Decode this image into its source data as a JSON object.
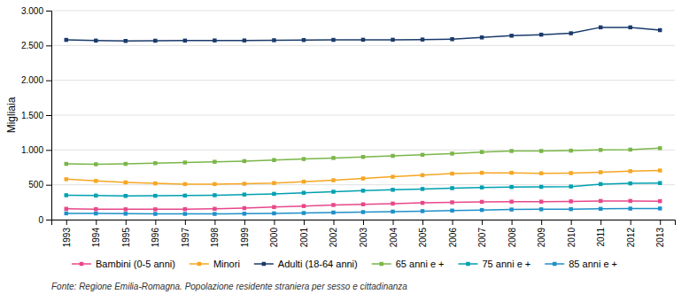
{
  "chart_data": {
    "type": "line",
    "x": [
      1993,
      1994,
      1995,
      1996,
      1997,
      1998,
      1999,
      2000,
      2001,
      2002,
      2003,
      2004,
      2005,
      2006,
      2007,
      2008,
      2009,
      2010,
      2011,
      2012,
      2013
    ],
    "series": [
      {
        "name": "Bambini (0-5 anni)",
        "color": "#e8478a",
        "marker": "square",
        "values": [
          155,
          150,
          148,
          148,
          150,
          155,
          165,
          180,
          195,
          210,
          220,
          230,
          240,
          248,
          255,
          258,
          258,
          262,
          268,
          268,
          265
        ]
      },
      {
        "name": "Minori",
        "color": "#f5a623",
        "marker": "square",
        "values": [
          580,
          555,
          535,
          520,
          510,
          510,
          515,
          525,
          545,
          565,
          590,
          615,
          638,
          660,
          672,
          672,
          665,
          668,
          680,
          695,
          705
        ]
      },
      {
        "name": "Adulti (18-64 anni)",
        "color": "#1a3a6b",
        "marker": "square",
        "values": [
          2580,
          2570,
          2565,
          2568,
          2570,
          2572,
          2572,
          2575,
          2578,
          2580,
          2582,
          2582,
          2585,
          2590,
          2615,
          2640,
          2655,
          2675,
          2760,
          2760,
          2720
        ]
      },
      {
        "name": "65 anni e +",
        "color": "#7ab648",
        "marker": "square",
        "values": [
          800,
          795,
          800,
          810,
          820,
          830,
          840,
          855,
          870,
          885,
          900,
          915,
          930,
          948,
          970,
          985,
          985,
          990,
          1000,
          1005,
          1025
        ]
      },
      {
        "name": "75 anni e +",
        "color": "#00a0b0",
        "marker": "square",
        "values": [
          350,
          345,
          340,
          342,
          345,
          350,
          360,
          370,
          385,
          400,
          415,
          428,
          440,
          452,
          462,
          468,
          470,
          475,
          510,
          520,
          525
        ]
      },
      {
        "name": "85 anni e +",
        "color": "#1e90c8",
        "marker": "square",
        "values": [
          90,
          88,
          85,
          82,
          82,
          82,
          85,
          90,
          95,
          102,
          108,
          115,
          122,
          130,
          138,
          145,
          148,
          150,
          155,
          158,
          160
        ]
      }
    ],
    "y_label": "Migliaia",
    "xlim": [
      1992.5,
      2013.5
    ],
    "xticks": [
      1993,
      1994,
      1995,
      1996,
      1997,
      1998,
      1999,
      2000,
      2001,
      2002,
      2003,
      2004,
      2005,
      2006,
      2007,
      2008,
      2009,
      2010,
      2011,
      2012,
      2013
    ],
    "ylim": [
      0,
      3000
    ],
    "yticks": [
      0,
      500,
      {
        "value": 1000,
        "label": "1.000"
      },
      {
        "value": 1500,
        "label": "1.500"
      },
      {
        "value": 2000,
        "label": "2.000"
      },
      {
        "value": 2500,
        "label": "2.500"
      },
      {
        "value": 3000,
        "label": "3.000"
      }
    ],
    "grid": true,
    "legend": "bottom",
    "annotations": [
      "Fonte: Regione Emilia-Romagna. Popolazione residente straniera per sesso e cittadinanza"
    ]
  }
}
